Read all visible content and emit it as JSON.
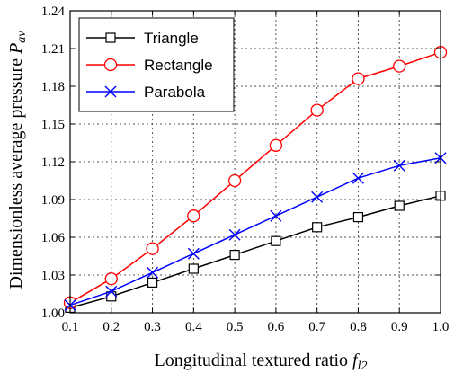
{
  "chart_data": {
    "type": "line",
    "xlabel": "Longitudinal textured ratio",
    "xlabel_symbol": "f",
    "xlabel_sub": "l2",
    "ylabel": "Dimensionless average pressure",
    "ylabel_symbol": "P",
    "ylabel_sub": "av",
    "xlim": [
      0.1,
      1.0
    ],
    "ylim": [
      1.0,
      1.24
    ],
    "xticks": [
      "0.1",
      "0.2",
      "0.3",
      "0.4",
      "0.5",
      "0.6",
      "0.7",
      "0.8",
      "0.9",
      "1.0"
    ],
    "yticks": [
      "1.00",
      "1.03",
      "1.06",
      "1.09",
      "1.12",
      "1.15",
      "1.18",
      "1.21",
      "1.24"
    ],
    "grid": true,
    "legend_position": "top-left",
    "x": [
      0.1,
      0.2,
      0.3,
      0.4,
      0.5,
      0.6,
      0.7,
      0.8,
      0.9,
      1.0
    ],
    "series": [
      {
        "name": "Triangle",
        "color": "#000000",
        "marker": "square",
        "values": [
          1.004,
          1.013,
          1.024,
          1.035,
          1.046,
          1.057,
          1.068,
          1.076,
          1.085,
          1.093
        ]
      },
      {
        "name": "Rectangle",
        "color": "#ff0000",
        "marker": "circle",
        "values": [
          1.008,
          1.027,
          1.051,
          1.077,
          1.105,
          1.133,
          1.161,
          1.186,
          1.196,
          1.207
        ]
      },
      {
        "name": "Parabola",
        "color": "#0000ff",
        "marker": "x",
        "values": [
          1.006,
          1.017,
          1.032,
          1.047,
          1.062,
          1.077,
          1.092,
          1.107,
          1.117,
          1.123
        ]
      }
    ]
  }
}
